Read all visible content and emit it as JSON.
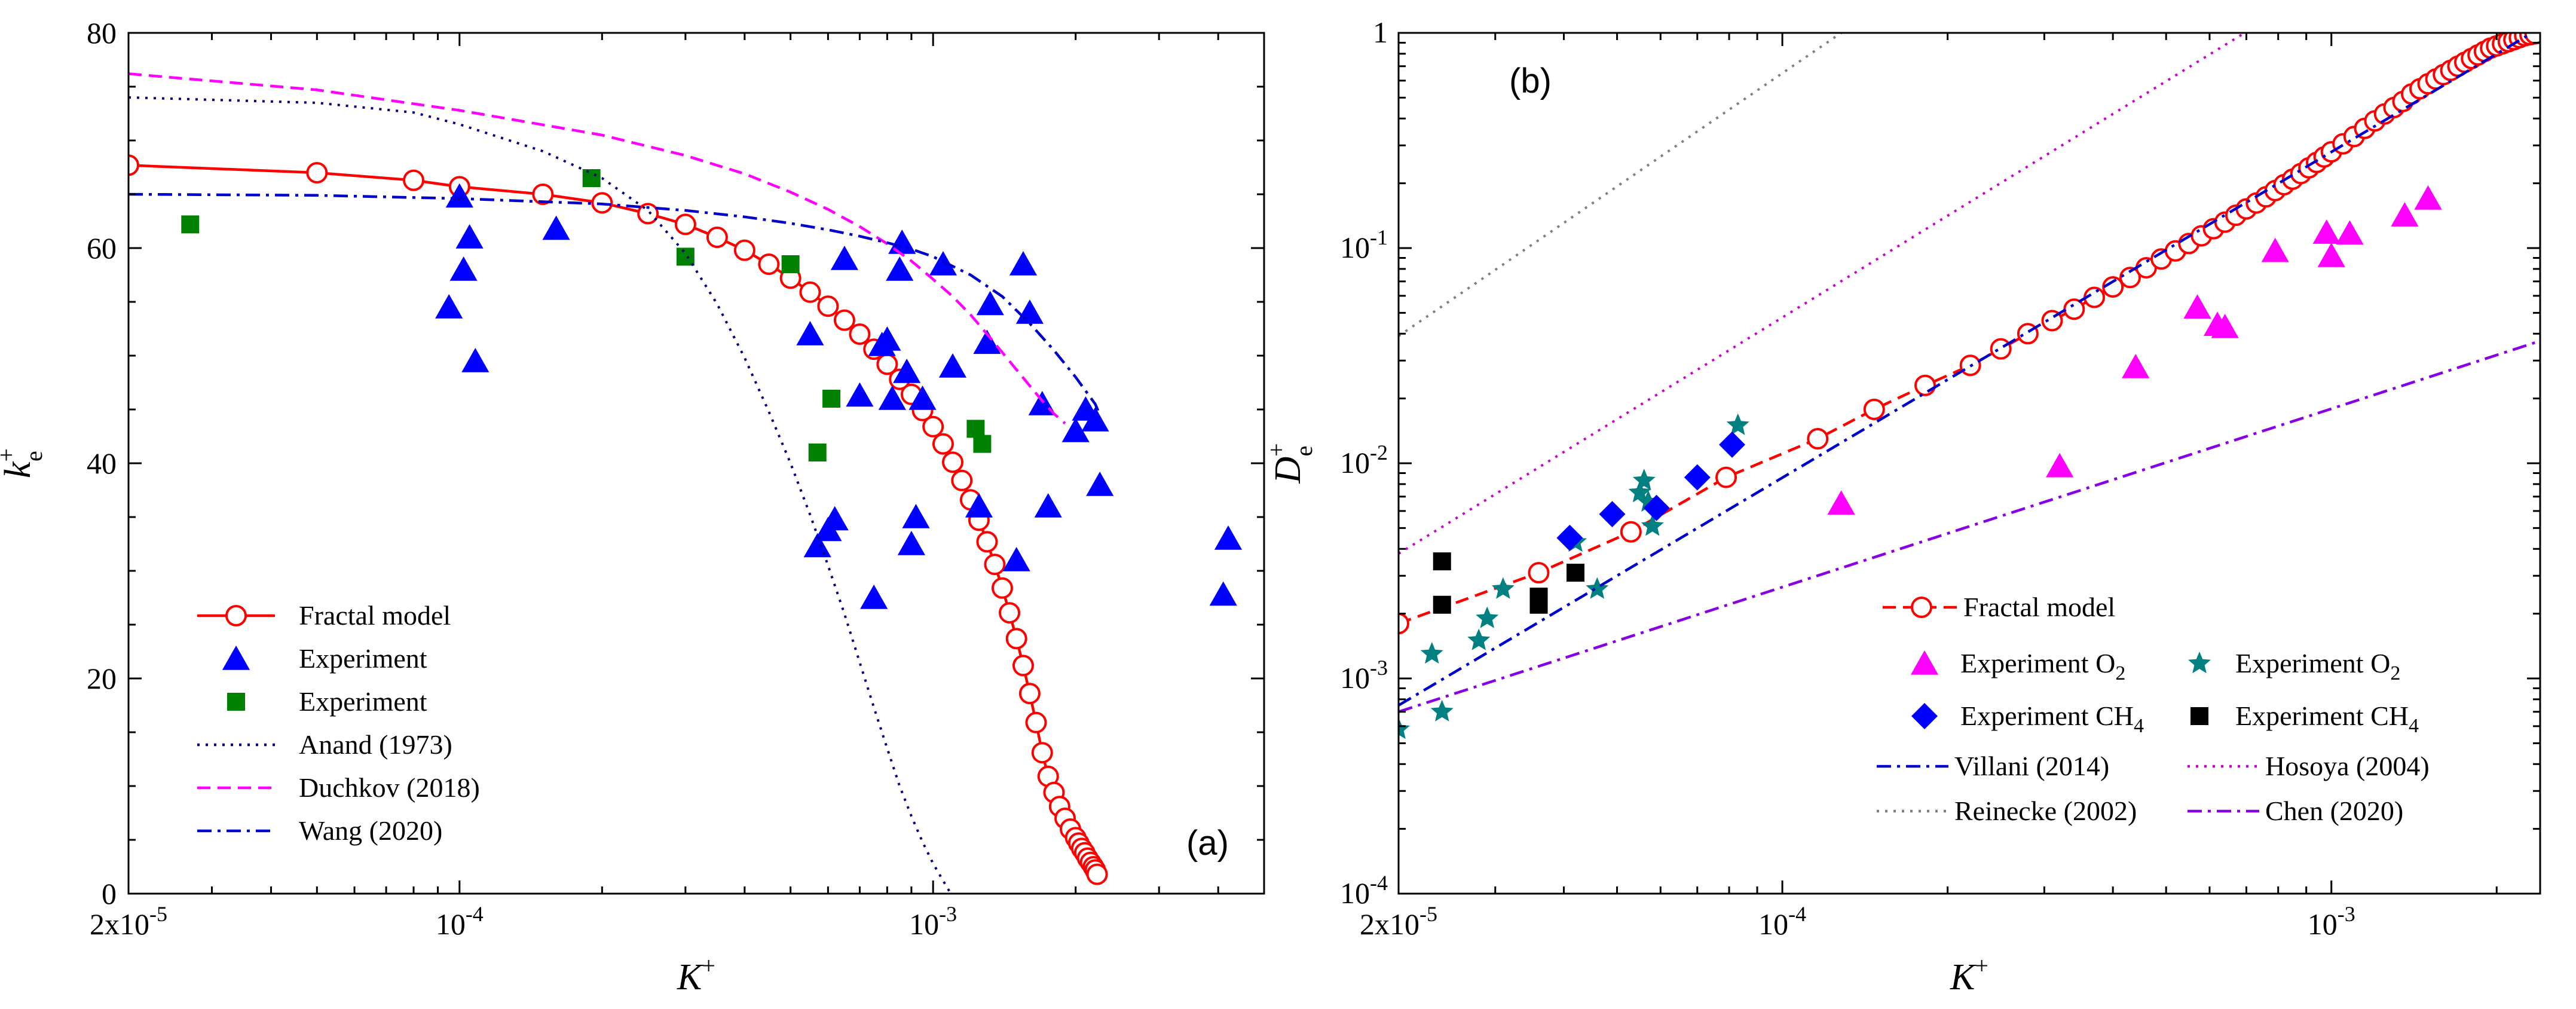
{
  "colors": {
    "fractal": "#ff0000",
    "exp_blue": "#0000ff",
    "exp_green": "#008000",
    "anand": "#000080",
    "duchkov": "#ff00ff",
    "wang": "#0000cd",
    "magenta": "#ff00ff",
    "teal": "#008080",
    "black": "#000000",
    "villani": "#0000cd",
    "hosoya": "#cc00cc",
    "reinecke": "#808080",
    "chen": "#8a00e6"
  },
  "chart_data": [
    {
      "type": "scatter",
      "panel": "(a)",
      "xscale": "log",
      "xlim": [
        2e-05,
        0.005
      ],
      "ylim": [
        0,
        80
      ],
      "xlabel": "K+",
      "ylabel": "k+e",
      "xticks": [
        {
          "value": 2e-05,
          "base": "2x10",
          "exp": "-5"
        },
        {
          "value": 0.0001,
          "base": "10",
          "exp": "-4"
        },
        {
          "value": 0.001,
          "base": "10",
          "exp": "-3"
        }
      ],
      "yticks": [
        0,
        20,
        40,
        60,
        80
      ],
      "legend_position": "bottom-left",
      "legend": [
        {
          "label": "Fractal model",
          "series": "fractal"
        },
        {
          "label": "Experiment",
          "series": "exp_blue"
        },
        {
          "label": "Experiment",
          "series": "exp_green"
        },
        {
          "label": "Anand (1973)",
          "series": "anand"
        },
        {
          "label": "Duchkov (2018)",
          "series": "duchkov"
        },
        {
          "label": "Wang (2020)",
          "series": "wang"
        }
      ],
      "series": [
        {
          "id": "fractal",
          "name": "Fractal model",
          "kind": "line-markers",
          "dash": "solid",
          "marker": "circle",
          "x": [
            2e-05,
            5e-05,
            8e-05,
            0.0001,
            0.00015,
            0.0002,
            0.00025,
            0.0003,
            0.00035,
            0.0004,
            0.00045,
            0.0005,
            0.00055,
            0.0006,
            0.00065,
            0.0007,
            0.00075,
            0.0008,
            0.00085,
            0.0009,
            0.00095,
            0.001,
            0.00105,
            0.0011,
            0.00115,
            0.0012,
            0.00125,
            0.0013,
            0.00135,
            0.0014,
            0.00145,
            0.0015,
            0.00155,
            0.0016,
            0.00165,
            0.0017,
            0.00175,
            0.0018,
            0.00185,
            0.0019,
            0.00195,
            0.002,
            0.00203,
            0.00206,
            0.00209,
            0.00212,
            0.00215,
            0.00218,
            0.0022,
            0.00222
          ],
          "y": [
            67.7,
            67.0,
            66.3,
            65.7,
            65.0,
            64.2,
            63.2,
            62.2,
            61.0,
            59.8,
            58.5,
            57.2,
            55.9,
            54.6,
            53.3,
            52.0,
            50.6,
            49.2,
            47.8,
            46.4,
            44.9,
            43.4,
            41.8,
            40.1,
            38.4,
            36.6,
            34.7,
            32.7,
            30.6,
            28.4,
            26.1,
            23.7,
            21.2,
            18.6,
            15.9,
            13.1,
            10.9,
            9.4,
            8.1,
            7.0,
            6.0,
            5.2,
            4.7,
            4.2,
            3.8,
            3.3,
            2.9,
            2.5,
            2.2,
            1.8
          ]
        },
        {
          "id": "exp_blue",
          "name": "Experiment",
          "kind": "markers",
          "marker": "triangle",
          "x": [
            9.5e-05,
            0.0001,
            0.000102,
            0.000105,
            0.000108,
            0.00016,
            0.00055,
            0.00057,
            0.0006,
            0.00062,
            0.00065,
            0.0007,
            0.00075,
            0.00078,
            0.0008,
            0.00082,
            0.00085,
            0.00086,
            0.00088,
            0.0009,
            0.00092,
            0.00095,
            0.00105,
            0.0011,
            0.00125,
            0.0013,
            0.00132,
            0.0015,
            0.00155,
            0.0016,
            0.0017,
            0.00175,
            0.002,
            0.0021,
            0.0022,
            0.00225,
            0.0041,
            0.0042
          ],
          "y": [
            54.5,
            64.8,
            58.0,
            61.0,
            49.5,
            61.8,
            52.0,
            32.3,
            33.8,
            34.8,
            59.0,
            46.3,
            27.5,
            51.0,
            51.5,
            46.0,
            58.0,
            60.5,
            48.5,
            32.5,
            35.0,
            46.0,
            58.5,
            49.0,
            36.0,
            51.2,
            54.8,
            31.0,
            58.5,
            54.0,
            45.5,
            36.0,
            43.0,
            45.0,
            44.0,
            38.0,
            27.8,
            33.0
          ]
        },
        {
          "id": "exp_green",
          "name": "Experiment",
          "kind": "markers",
          "marker": "square",
          "x": [
            2.7e-05,
            0.00019,
            0.0003,
            0.0005,
            0.00057,
            0.00061,
            0.00123,
            0.00127
          ],
          "y": [
            62.2,
            66.5,
            59.2,
            58.5,
            41.0,
            46.0,
            43.2,
            41.8
          ]
        },
        {
          "id": "anand",
          "name": "Anand (1973)",
          "kind": "line",
          "dash": "dot",
          "x": [
            2e-05,
            5e-05,
            8e-05,
            0.0001,
            0.00015,
            0.0002,
            0.00025,
            0.0003,
            0.00035,
            0.0004,
            0.00045,
            0.0005,
            0.00055,
            0.0006,
            0.00065,
            0.0007,
            0.00075,
            0.0008,
            0.00085,
            0.0009,
            0.00095,
            0.001,
            0.00105,
            0.00109
          ],
          "y": [
            74.0,
            73.5,
            72.6,
            71.5,
            69.0,
            66.5,
            63.5,
            59.5,
            54.8,
            49.8,
            44.8,
            40.0,
            35.2,
            30.5,
            26.0,
            21.5,
            17.3,
            13.5,
            10.0,
            7.2,
            4.8,
            2.8,
            1.2,
            0.0
          ]
        },
        {
          "id": "duchkov",
          "name": "Duchkov (2018)",
          "kind": "line",
          "dash": "dash",
          "x": [
            2e-05,
            5e-05,
            0.0001,
            0.0002,
            0.0003,
            0.0004,
            0.0005,
            0.0006,
            0.0007,
            0.0008,
            0.0009,
            0.001,
            0.0011,
            0.0012,
            0.0013,
            0.0014,
            0.0015,
            0.0016,
            0.0017,
            0.0018,
            0.0019
          ],
          "y": [
            76.2,
            74.7,
            72.8,
            70.5,
            68.6,
            66.9,
            65.2,
            63.6,
            62.0,
            60.4,
            58.8,
            57.1,
            55.5,
            53.8,
            52.0,
            50.3,
            48.7,
            47.2,
            45.8,
            44.6,
            43.7
          ]
        },
        {
          "id": "wang",
          "name": "Wang (2020)",
          "kind": "line",
          "dash": "dashdot",
          "x": [
            2e-05,
            5e-05,
            0.0001,
            0.0002,
            0.0003,
            0.0004,
            0.0005,
            0.0006,
            0.0007,
            0.0008,
            0.0009,
            0.001,
            0.0012,
            0.0014,
            0.0016,
            0.0018,
            0.002,
            0.0022,
            0.00225
          ],
          "y": [
            65.0,
            64.9,
            64.6,
            64.1,
            63.5,
            62.9,
            62.3,
            61.7,
            61.1,
            60.5,
            59.9,
            59.2,
            57.5,
            55.5,
            53.0,
            50.5,
            48.0,
            45.5,
            44.5
          ]
        }
      ]
    },
    {
      "type": "scatter",
      "panel": "(b)",
      "xscale": "log",
      "yscale": "log",
      "xlim": [
        2e-05,
        0.0024
      ],
      "ylim": [
        0.0001,
        1
      ],
      "xlabel": "K+",
      "ylabel": "D+e",
      "xticks": [
        {
          "value": 2e-05,
          "base": "2x10",
          "exp": "-5"
        },
        {
          "value": 0.0001,
          "base": "10",
          "exp": "-4"
        },
        {
          "value": 0.001,
          "base": "10",
          "exp": "-3"
        }
      ],
      "yticks": [
        {
          "value": 0.0001,
          "base": "10",
          "exp": "-4"
        },
        {
          "value": 0.001,
          "base": "10",
          "exp": "-3"
        },
        {
          "value": 0.01,
          "base": "10",
          "exp": "-2"
        },
        {
          "value": 0.1,
          "base": "10",
          "exp": "-1"
        },
        {
          "value": 1,
          "base": "1",
          "exp": "0"
        }
      ],
      "legend_position": "bottom-right",
      "legend": [
        {
          "label": "Fractal model",
          "series": "fractal_b"
        },
        {
          "label": "Experiment O",
          "sub": "2",
          "series": "exp_o2_mag"
        },
        {
          "label": "Experiment O",
          "sub": "2",
          "series": "exp_o2_teal"
        },
        {
          "label": "Experiment CH",
          "sub": "4",
          "series": "exp_ch4_blue"
        },
        {
          "label": "Experiment CH",
          "sub": "4",
          "series": "exp_ch4_black"
        },
        {
          "label": "Villani (2014)",
          "series": "villani"
        },
        {
          "label": "Hosoya (2004)",
          "series": "hosoya"
        },
        {
          "label": "Reinecke (2002)",
          "series": "reinecke"
        },
        {
          "label": "Chen (2020)",
          "series": "chen"
        }
      ],
      "series": [
        {
          "id": "fractal_b",
          "name": "Fractal model",
          "kind": "line-markers",
          "dash": "dash",
          "marker": "circle",
          "x": [
            2e-05,
            3.6e-05,
            5.3e-05,
            7.9e-05,
            0.000116,
            0.000147,
            0.000182,
            0.00022,
            0.00025,
            0.00028,
            0.00031,
            0.00034,
            0.00037,
            0.0004,
            0.00043,
            0.00046,
            0.00049,
            0.00052,
            0.00055,
            0.00058,
            0.00061,
            0.00064,
            0.00067,
            0.0007,
            0.00073,
            0.00076,
            0.00079,
            0.00082,
            0.00085,
            0.00088,
            0.00091,
            0.00094,
            0.00097,
            0.001,
            0.00105,
            0.0011,
            0.00115,
            0.0012,
            0.00125,
            0.0013,
            0.00135,
            0.0014,
            0.00145,
            0.0015,
            0.00155,
            0.0016,
            0.00165,
            0.0017,
            0.00175,
            0.0018,
            0.00185,
            0.0019,
            0.00195,
            0.002,
            0.00205,
            0.0021,
            0.00215,
            0.0022,
            0.00225,
            0.0023,
            0.00235
          ],
          "y": [
            0.0018,
            0.0031,
            0.0048,
            0.0086,
            0.013,
            0.0178,
            0.023,
            0.0285,
            0.034,
            0.04,
            0.046,
            0.052,
            0.059,
            0.066,
            0.073,
            0.081,
            0.089,
            0.097,
            0.105,
            0.114,
            0.123,
            0.132,
            0.142,
            0.152,
            0.162,
            0.173,
            0.185,
            0.197,
            0.209,
            0.222,
            0.236,
            0.25,
            0.265,
            0.28,
            0.305,
            0.33,
            0.36,
            0.39,
            0.42,
            0.45,
            0.48,
            0.52,
            0.55,
            0.58,
            0.61,
            0.64,
            0.67,
            0.7,
            0.73,
            0.76,
            0.79,
            0.82,
            0.85,
            0.87,
            0.89,
            0.91,
            0.93,
            0.95,
            0.97,
            0.98,
            0.99
          ]
        },
        {
          "id": "exp_o2_mag",
          "name": "Experiment O2",
          "kind": "markers",
          "marker": "triangle",
          "x": [
            0.000128,
            0.00032,
            0.00044,
            0.00057,
            0.00062,
            0.00064,
            0.00079,
            0.00098,
            0.001,
            0.00108,
            0.00136,
            0.0015
          ],
          "y": [
            0.0065,
            0.0097,
            0.028,
            0.053,
            0.044,
            0.043,
            0.097,
            0.118,
            0.092,
            0.117,
            0.142,
            0.17
          ]
        },
        {
          "id": "exp_o2_teal",
          "name": "Experiment O2",
          "kind": "markers",
          "marker": "star",
          "x": [
            2e-05,
            2.4e-05,
            2.3e-05,
            2.8e-05,
            2.9e-05,
            3.1e-05,
            4.2e-05,
            4.6e-05,
            5.5e-05,
            5.6e-05,
            5.7e-05,
            5.8e-05,
            8.3e-05
          ],
          "y": [
            0.00058,
            0.0007,
            0.0013,
            0.0015,
            0.0019,
            0.0026,
            0.0043,
            0.0026,
            0.0073,
            0.0083,
            0.0066,
            0.0051,
            0.015
          ]
        },
        {
          "id": "exp_ch4_blue",
          "name": "Experiment CH4",
          "kind": "markers",
          "marker": "diamond",
          "x": [
            4.1e-05,
            4.9e-05,
            5.9e-05,
            7e-05,
            8.1e-05
          ],
          "y": [
            0.0045,
            0.0058,
            0.0062,
            0.0086,
            0.0122
          ]
        },
        {
          "id": "exp_ch4_black",
          "name": "Experiment CH4",
          "kind": "markers",
          "marker": "square",
          "x": [
            2.4e-05,
            2.4e-05,
            3.6e-05,
            3.6e-05,
            4.2e-05
          ],
          "y": [
            0.0035,
            0.0022,
            0.0024,
            0.0022,
            0.0031
          ]
        },
        {
          "id": "villani",
          "name": "Villani (2014)",
          "kind": "line",
          "dash": "dashdot",
          "x": [
            2e-05,
            0.00232
          ],
          "y": [
            0.00075,
            1.0
          ]
        },
        {
          "id": "hosoya",
          "name": "Hosoya (2004)",
          "kind": "line",
          "dash": "dot",
          "x": [
            2e-05,
            0.000695
          ],
          "y": [
            0.0038,
            1.0
          ]
        },
        {
          "id": "reinecke",
          "name": "Reinecke (2002)",
          "kind": "line",
          "dash": "dot",
          "x": [
            2e-05,
            0.000128
          ],
          "y": [
            0.039,
            1.0
          ]
        },
        {
          "id": "chen",
          "name": "Chen (2020)",
          "kind": "line",
          "dash": "dashdot",
          "x": [
            2e-05,
            0.0024
          ],
          "y": [
            0.0007,
            0.037
          ]
        }
      ]
    }
  ]
}
